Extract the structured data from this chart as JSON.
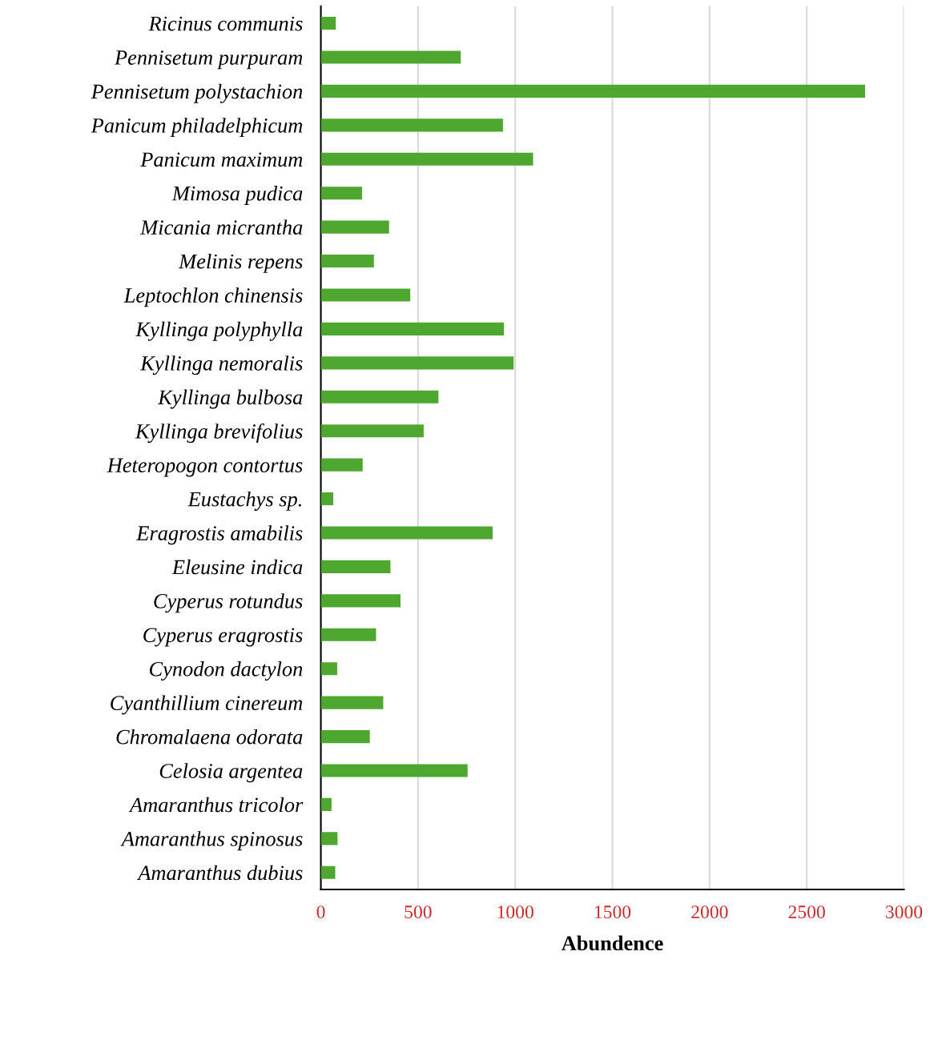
{
  "chart_data": {
    "type": "bar",
    "orientation": "horizontal",
    "xlabel": "Abundence",
    "categories": [
      "Ricinus communis",
      "Pennisetum purpuram",
      "Pennisetum polystachion",
      "Panicum philadelphicum",
      "Panicum maximum",
      "Mimosa pudica",
      "Micania micrantha",
      "Melinis repens",
      "Leptochlon chinensis",
      "Kyllinga polyphylla",
      "Kyllinga nemoralis",
      "Kyllinga bulbosa",
      "Kyllinga brevifolius",
      "Heteropogon contortus",
      "Eustachys sp.",
      "Eragrostis amabilis",
      "Eleusine indica",
      "Cyperus rotundus",
      "Cyperus eragrostis",
      "Cynodon dactylon",
      "Cyanthillium cinereum",
      "Chromalaena odorata",
      "Celosia argentea",
      "Amaranthus tricolor",
      "Amaranthus spinosus",
      "Amaranthus dubius"
    ],
    "values": [
      77,
      720,
      2800,
      937,
      1092,
      212,
      351,
      273,
      460,
      942,
      992,
      605,
      529,
      215,
      64,
      884,
      358,
      410,
      284,
      84,
      321,
      252,
      755,
      55,
      86,
      74
    ],
    "color": "#4ea72e",
    "xlim": [
      0,
      3000
    ],
    "xticks": [
      0,
      500,
      1000,
      1500,
      2000,
      2500,
      3000
    ],
    "grid": "x"
  }
}
